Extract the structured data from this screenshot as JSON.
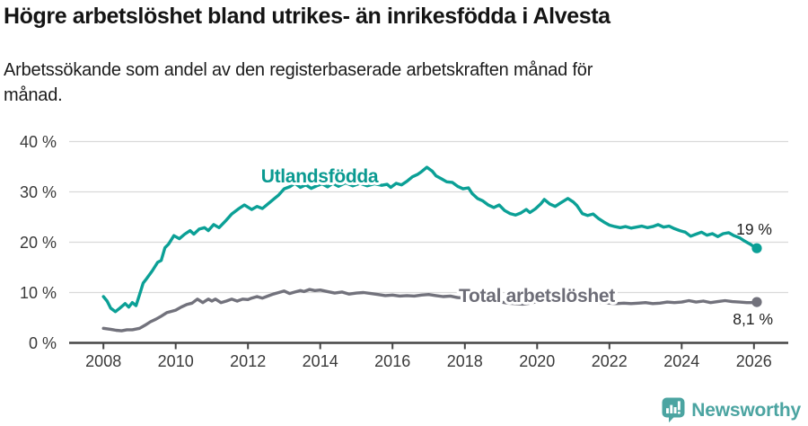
{
  "header": {
    "title": "Högre arbetslöshet bland utrikes- än inrikesfödda i Alvesta",
    "subtitle_line1": "Arbetssökande som andel av den registerbaserade arbetskraften månad för",
    "subtitle_line2": "månad."
  },
  "footer": {
    "brand": "Newsworthy",
    "logo_icon": "newsworthy-speech-bubble-barchart-icon"
  },
  "colors": {
    "foreign_series": "#0ba096",
    "total_series": "#72727c",
    "grid": "#d9d9d9",
    "axis": "#454545",
    "tick_label": "#3a3a3a",
    "title": "#141414",
    "end_label": "#1f1f1f",
    "brand_teal": "#4ba4a1",
    "background": "#ffffff"
  },
  "chart_data": {
    "type": "line",
    "title": "Högre arbetslöshet bland utrikes- än inrikesfödda i Alvesta",
    "subtitle_lines": [
      "Arbetssökande som andel av den registerbaserade arbetskraften månad för",
      "månad."
    ],
    "x_ticks": [
      2008,
      2010,
      2012,
      2014,
      2016,
      2018,
      2020,
      2022,
      2024,
      2026
    ],
    "x_tick_labels": [
      "2008",
      "2010",
      "2012",
      "2014",
      "2016",
      "2018",
      "2020",
      "2022",
      "2024",
      "2026"
    ],
    "y_ticks": [
      0,
      10,
      20,
      30,
      40
    ],
    "y_tick_labels": [
      "0 %",
      "10 %",
      "20 %",
      "30 %",
      "40 %"
    ],
    "xlim": [
      2007.05,
      2026.95
    ],
    "ylim": [
      0,
      40
    ],
    "grid": "horizontal",
    "legend_position": "inline-labels",
    "series": [
      {
        "name": "Utlandsfödda",
        "color": "#0ba096",
        "label_color": "#0a9a91",
        "end_label": "19 %",
        "end_dot": true,
        "points": [
          [
            2008.0,
            9.2
          ],
          [
            2008.1,
            8.3
          ],
          [
            2008.2,
            6.9
          ],
          [
            2008.33,
            6.2
          ],
          [
            2008.45,
            6.9
          ],
          [
            2008.6,
            7.8
          ],
          [
            2008.7,
            7.1
          ],
          [
            2008.8,
            8.0
          ],
          [
            2008.9,
            7.4
          ],
          [
            2009.0,
            9.6
          ],
          [
            2009.1,
            11.9
          ],
          [
            2009.2,
            12.8
          ],
          [
            2009.35,
            14.3
          ],
          [
            2009.5,
            16.0
          ],
          [
            2009.6,
            16.4
          ],
          [
            2009.7,
            18.9
          ],
          [
            2009.8,
            19.6
          ],
          [
            2009.95,
            21.3
          ],
          [
            2010.1,
            20.7
          ],
          [
            2010.25,
            21.6
          ],
          [
            2010.4,
            22.3
          ],
          [
            2010.5,
            21.6
          ],
          [
            2010.65,
            22.6
          ],
          [
            2010.8,
            22.9
          ],
          [
            2010.9,
            22.3
          ],
          [
            2011.05,
            23.5
          ],
          [
            2011.2,
            22.9
          ],
          [
            2011.4,
            24.4
          ],
          [
            2011.55,
            25.6
          ],
          [
            2011.75,
            26.7
          ],
          [
            2011.9,
            27.4
          ],
          [
            2012.1,
            26.5
          ],
          [
            2012.25,
            27.1
          ],
          [
            2012.4,
            26.7
          ],
          [
            2012.55,
            27.6
          ],
          [
            2012.7,
            28.5
          ],
          [
            2012.85,
            29.4
          ],
          [
            2013.0,
            30.6
          ],
          [
            2013.15,
            31.0
          ],
          [
            2013.3,
            31.7
          ],
          [
            2013.45,
            30.9
          ],
          [
            2013.6,
            31.4
          ],
          [
            2013.75,
            30.7
          ],
          [
            2013.9,
            31.2
          ],
          [
            2014.05,
            31.6
          ],
          [
            2014.2,
            31.0
          ],
          [
            2014.35,
            31.7
          ],
          [
            2014.5,
            31.1
          ],
          [
            2014.7,
            31.8
          ],
          [
            2014.9,
            31.2
          ],
          [
            2015.1,
            31.7
          ],
          [
            2015.3,
            31.2
          ],
          [
            2015.5,
            31.6
          ],
          [
            2015.7,
            31.3
          ],
          [
            2015.85,
            31.5
          ],
          [
            2015.95,
            30.9
          ],
          [
            2016.1,
            31.7
          ],
          [
            2016.25,
            31.4
          ],
          [
            2016.4,
            32.1
          ],
          [
            2016.55,
            33.0
          ],
          [
            2016.7,
            33.5
          ],
          [
            2016.8,
            34.0
          ],
          [
            2016.95,
            34.9
          ],
          [
            2017.1,
            34.1
          ],
          [
            2017.2,
            33.2
          ],
          [
            2017.35,
            32.6
          ],
          [
            2017.5,
            32.0
          ],
          [
            2017.65,
            31.9
          ],
          [
            2017.8,
            31.1
          ],
          [
            2017.95,
            30.6
          ],
          [
            2018.1,
            30.8
          ],
          [
            2018.2,
            29.7
          ],
          [
            2018.35,
            28.7
          ],
          [
            2018.5,
            28.2
          ],
          [
            2018.65,
            27.4
          ],
          [
            2018.8,
            26.9
          ],
          [
            2018.95,
            27.4
          ],
          [
            2019.1,
            26.3
          ],
          [
            2019.25,
            25.7
          ],
          [
            2019.4,
            25.4
          ],
          [
            2019.55,
            25.8
          ],
          [
            2019.7,
            26.5
          ],
          [
            2019.8,
            25.9
          ],
          [
            2019.95,
            26.6
          ],
          [
            2020.1,
            27.6
          ],
          [
            2020.2,
            28.5
          ],
          [
            2020.35,
            27.6
          ],
          [
            2020.5,
            27.1
          ],
          [
            2020.65,
            27.8
          ],
          [
            2020.85,
            28.7
          ],
          [
            2021.0,
            28.0
          ],
          [
            2021.1,
            27.3
          ],
          [
            2021.25,
            25.7
          ],
          [
            2021.4,
            25.3
          ],
          [
            2021.55,
            25.6
          ],
          [
            2021.7,
            24.7
          ],
          [
            2021.85,
            24.0
          ],
          [
            2022.0,
            23.4
          ],
          [
            2022.15,
            23.1
          ],
          [
            2022.3,
            22.9
          ],
          [
            2022.45,
            23.1
          ],
          [
            2022.6,
            22.8
          ],
          [
            2022.75,
            23.0
          ],
          [
            2022.9,
            23.2
          ],
          [
            2023.05,
            22.9
          ],
          [
            2023.2,
            23.1
          ],
          [
            2023.35,
            23.5
          ],
          [
            2023.5,
            23.0
          ],
          [
            2023.65,
            23.2
          ],
          [
            2023.8,
            22.7
          ],
          [
            2023.95,
            22.3
          ],
          [
            2024.1,
            22.0
          ],
          [
            2024.25,
            21.2
          ],
          [
            2024.4,
            21.6
          ],
          [
            2024.55,
            22.0
          ],
          [
            2024.7,
            21.4
          ],
          [
            2024.85,
            21.7
          ],
          [
            2025.0,
            21.1
          ],
          [
            2025.15,
            21.7
          ],
          [
            2025.3,
            21.9
          ],
          [
            2025.45,
            21.3
          ],
          [
            2025.6,
            20.9
          ],
          [
            2025.75,
            20.2
          ],
          [
            2025.9,
            19.6
          ],
          [
            2026.0,
            19.1
          ],
          [
            2026.08,
            18.8
          ]
        ]
      },
      {
        "name": "Total arbetslöshet",
        "color": "#72727c",
        "label_color": "#6d6d77",
        "end_label": "8,1 %",
        "end_dot": true,
        "points": [
          [
            2008.0,
            2.9
          ],
          [
            2008.2,
            2.7
          ],
          [
            2008.35,
            2.5
          ],
          [
            2008.5,
            2.4
          ],
          [
            2008.65,
            2.6
          ],
          [
            2008.8,
            2.6
          ],
          [
            2009.0,
            2.9
          ],
          [
            2009.15,
            3.5
          ],
          [
            2009.3,
            4.2
          ],
          [
            2009.45,
            4.7
          ],
          [
            2009.6,
            5.3
          ],
          [
            2009.75,
            6.0
          ],
          [
            2009.9,
            6.3
          ],
          [
            2010.0,
            6.5
          ],
          [
            2010.15,
            7.1
          ],
          [
            2010.3,
            7.6
          ],
          [
            2010.45,
            7.9
          ],
          [
            2010.6,
            8.7
          ],
          [
            2010.75,
            8.0
          ],
          [
            2010.9,
            8.7
          ],
          [
            2011.0,
            8.3
          ],
          [
            2011.1,
            8.7
          ],
          [
            2011.25,
            8.0
          ],
          [
            2011.4,
            8.3
          ],
          [
            2011.55,
            8.7
          ],
          [
            2011.7,
            8.3
          ],
          [
            2011.85,
            8.7
          ],
          [
            2012.0,
            8.6
          ],
          [
            2012.1,
            8.9
          ],
          [
            2012.25,
            9.2
          ],
          [
            2012.4,
            8.9
          ],
          [
            2012.55,
            9.3
          ],
          [
            2012.7,
            9.7
          ],
          [
            2012.85,
            10.0
          ],
          [
            2013.0,
            10.3
          ],
          [
            2013.15,
            9.8
          ],
          [
            2013.3,
            10.1
          ],
          [
            2013.45,
            10.4
          ],
          [
            2013.55,
            10.2
          ],
          [
            2013.7,
            10.6
          ],
          [
            2013.85,
            10.4
          ],
          [
            2014.0,
            10.5
          ],
          [
            2014.2,
            10.2
          ],
          [
            2014.4,
            9.9
          ],
          [
            2014.6,
            10.1
          ],
          [
            2014.8,
            9.7
          ],
          [
            2015.0,
            9.9
          ],
          [
            2015.2,
            10.0
          ],
          [
            2015.4,
            9.8
          ],
          [
            2015.6,
            9.6
          ],
          [
            2015.8,
            9.4
          ],
          [
            2016.0,
            9.5
          ],
          [
            2016.2,
            9.3
          ],
          [
            2016.4,
            9.4
          ],
          [
            2016.6,
            9.3
          ],
          [
            2016.8,
            9.5
          ],
          [
            2017.0,
            9.6
          ],
          [
            2017.2,
            9.4
          ],
          [
            2017.4,
            9.2
          ],
          [
            2017.6,
            9.3
          ],
          [
            2017.8,
            9.0
          ],
          [
            2018.0,
            8.9
          ],
          [
            2018.2,
            8.7
          ],
          [
            2018.4,
            8.4
          ],
          [
            2018.6,
            8.1
          ],
          [
            2018.8,
            8.0
          ],
          [
            2019.0,
            8.1
          ],
          [
            2019.2,
            7.9
          ],
          [
            2019.4,
            7.8
          ],
          [
            2019.6,
            7.7
          ],
          [
            2019.8,
            7.9
          ],
          [
            2020.0,
            8.2
          ],
          [
            2020.2,
            8.8
          ],
          [
            2020.4,
            9.3
          ],
          [
            2020.6,
            9.4
          ],
          [
            2020.8,
            9.2
          ],
          [
            2021.0,
            9.0
          ],
          [
            2021.2,
            8.8
          ],
          [
            2021.4,
            8.5
          ],
          [
            2021.6,
            8.2
          ],
          [
            2021.8,
            8.0
          ],
          [
            2022.0,
            7.9
          ],
          [
            2022.2,
            7.8
          ],
          [
            2022.4,
            7.9
          ],
          [
            2022.6,
            7.8
          ],
          [
            2022.8,
            7.9
          ],
          [
            2023.0,
            8.0
          ],
          [
            2023.2,
            7.8
          ],
          [
            2023.4,
            7.9
          ],
          [
            2023.6,
            8.1
          ],
          [
            2023.8,
            8.0
          ],
          [
            2024.0,
            8.1
          ],
          [
            2024.2,
            8.4
          ],
          [
            2024.4,
            8.1
          ],
          [
            2024.6,
            8.3
          ],
          [
            2024.8,
            8.0
          ],
          [
            2025.0,
            8.2
          ],
          [
            2025.2,
            8.4
          ],
          [
            2025.4,
            8.2
          ],
          [
            2025.6,
            8.1
          ],
          [
            2025.8,
            8.0
          ],
          [
            2026.0,
            8.0
          ],
          [
            2026.08,
            8.1
          ]
        ]
      }
    ]
  }
}
